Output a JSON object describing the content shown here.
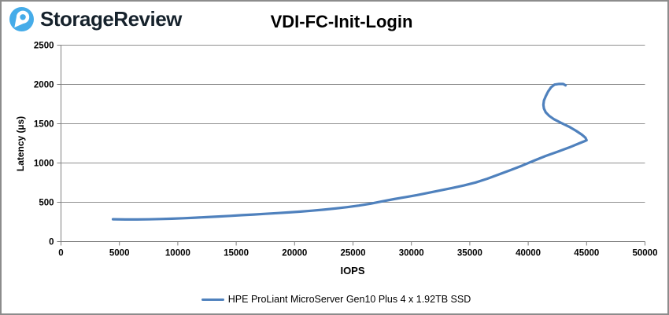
{
  "header": {
    "logo_text": "StorageReview",
    "logo_icon": "storagereview-pin-icon",
    "logo_icon_color": "#45ace9",
    "logo_text_color": "#16222c"
  },
  "chart_data": {
    "type": "line",
    "title": "VDI-FC-Init-Login",
    "xlabel": "IOPS",
    "ylabel": "Latency (µs)",
    "xlim": [
      0,
      50000
    ],
    "ylim": [
      0,
      2500
    ],
    "x_ticks": [
      0,
      5000,
      10000,
      15000,
      20000,
      25000,
      30000,
      35000,
      40000,
      45000,
      50000
    ],
    "y_ticks": [
      0,
      500,
      1000,
      1500,
      2000,
      2500
    ],
    "grid": "horizontal-only",
    "legend_position": "bottom-center",
    "colors": {
      "grid": "#8f8f8f",
      "axis": "#7f7f7f",
      "tick_text": "#000000"
    },
    "series": [
      {
        "name": "HPE ProLiant MicroServer Gen10 Plus 4 x 1.92TB SSD",
        "color": "#4f81bd",
        "points": [
          [
            4450,
            284
          ],
          [
            5500,
            281
          ],
          [
            6500,
            281
          ],
          [
            7500,
            283
          ],
          [
            8500,
            287
          ],
          [
            9500,
            291
          ],
          [
            10500,
            297
          ],
          [
            11500,
            304
          ],
          [
            12500,
            311
          ],
          [
            13500,
            319
          ],
          [
            14500,
            327
          ],
          [
            15500,
            336
          ],
          [
            16500,
            344
          ],
          [
            17500,
            353
          ],
          [
            18500,
            362
          ],
          [
            19500,
            371
          ],
          [
            20500,
            381
          ],
          [
            21500,
            393
          ],
          [
            22500,
            406
          ],
          [
            23500,
            421
          ],
          [
            24500,
            438
          ],
          [
            25500,
            458
          ],
          [
            26500,
            482
          ],
          [
            27500,
            512
          ],
          [
            28500,
            540
          ],
          [
            29500,
            566
          ],
          [
            30500,
            592
          ],
          [
            31500,
            622
          ],
          [
            32500,
            652
          ],
          [
            33500,
            682
          ],
          [
            34500,
            714
          ],
          [
            35500,
            752
          ],
          [
            36500,
            800
          ],
          [
            37500,
            855
          ],
          [
            38500,
            910
          ],
          [
            39500,
            968
          ],
          [
            40500,
            1030
          ],
          [
            41500,
            1090
          ],
          [
            42500,
            1143
          ],
          [
            43500,
            1197
          ],
          [
            44300,
            1246
          ],
          [
            44800,
            1276
          ],
          [
            45000,
            1290
          ],
          [
            44900,
            1322
          ],
          [
            44600,
            1360
          ],
          [
            44100,
            1410
          ],
          [
            43500,
            1462
          ],
          [
            42800,
            1512
          ],
          [
            42200,
            1558
          ],
          [
            41800,
            1600
          ],
          [
            41500,
            1645
          ],
          [
            41350,
            1693
          ],
          [
            41300,
            1740
          ],
          [
            41350,
            1795
          ],
          [
            41500,
            1850
          ],
          [
            41700,
            1908
          ],
          [
            41950,
            1962
          ],
          [
            42250,
            1998
          ],
          [
            42600,
            2006
          ],
          [
            43000,
            2006
          ],
          [
            43200,
            1989
          ]
        ]
      }
    ]
  }
}
